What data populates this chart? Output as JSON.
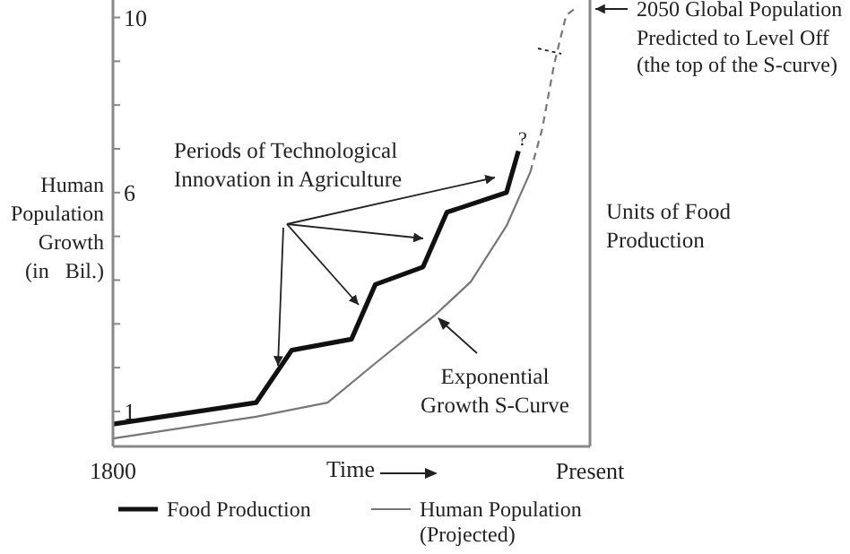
{
  "chart_data": {
    "type": "line",
    "ylabel": "Human Population Growth (in Bil.)",
    "xlabel": "Time",
    "categories": [
      "1800",
      null,
      null,
      null,
      null,
      null,
      null,
      null,
      null,
      null,
      null,
      null,
      null,
      null,
      null,
      null,
      null,
      null,
      null,
      null,
      null,
      null,
      null,
      null,
      null,
      null,
      null,
      null,
      null,
      null,
      null,
      null,
      null,
      null,
      null,
      null,
      null,
      null,
      null,
      null,
      "Present"
    ],
    "ylim": [
      0.2,
      10.4
    ],
    "yticks": [
      1,
      {
        "value": 2,
        "label": null
      },
      {
        "value": 3,
        "label": null
      },
      {
        "value": 4,
        "label": null
      },
      {
        "value": 5,
        "label": null
      },
      6,
      {
        "value": 7,
        "label": null
      },
      {
        "value": 8,
        "label": null
      },
      {
        "value": 9,
        "label": null
      },
      10
    ],
    "legend": "bottom",
    "marker": "none",
    "series": [
      {
        "name": "Food Production",
        "color": "#111111",
        "values": [
          0.71,
          null,
          null,
          null,
          null,
          null,
          null,
          null,
          null,
          null,
          null,
          null,
          1.2,
          null,
          null,
          2.4,
          null,
          null,
          null,
          null,
          2.65,
          null,
          3.9,
          null,
          null,
          null,
          4.3,
          null,
          5.55,
          null,
          null,
          null,
          null,
          6.0,
          6.95,
          null,
          null,
          null,
          null,
          null,
          null
        ]
      },
      {
        "name": "Human Population (Projected)",
        "color": "#777777",
        "values": [
          0.38,
          null,
          null,
          null,
          null,
          null,
          null,
          null,
          null,
          null,
          null,
          null,
          0.88,
          null,
          null,
          null,
          null,
          null,
          1.2,
          null,
          null,
          null,
          2.1,
          null,
          null,
          null,
          null,
          3.2,
          null,
          null,
          3.96,
          null,
          null,
          5.24,
          null,
          6.47,
          null,
          null,
          null,
          null,
          null
        ]
      },
      {
        "color": "#777777",
        "line_style": "dashed",
        "values": [
          null,
          null,
          null,
          null,
          null,
          null,
          null,
          null,
          null,
          null,
          null,
          null,
          null,
          null,
          null,
          null,
          null,
          null,
          null,
          null,
          null,
          null,
          null,
          null,
          null,
          null,
          null,
          null,
          null,
          null,
          null,
          null,
          null,
          null,
          null,
          6.47,
          7.46,
          8.94,
          10.05,
          10.26,
          null
        ]
      }
    ],
    "annotations": [
      "Periods of Technological Innovation in Agriculture",
      "Exponential Growth S-Curve",
      "?",
      "2050 Global Population Predicted to Level Off (the top of the S-curve)",
      "Units of Food Production"
    ]
  }
}
